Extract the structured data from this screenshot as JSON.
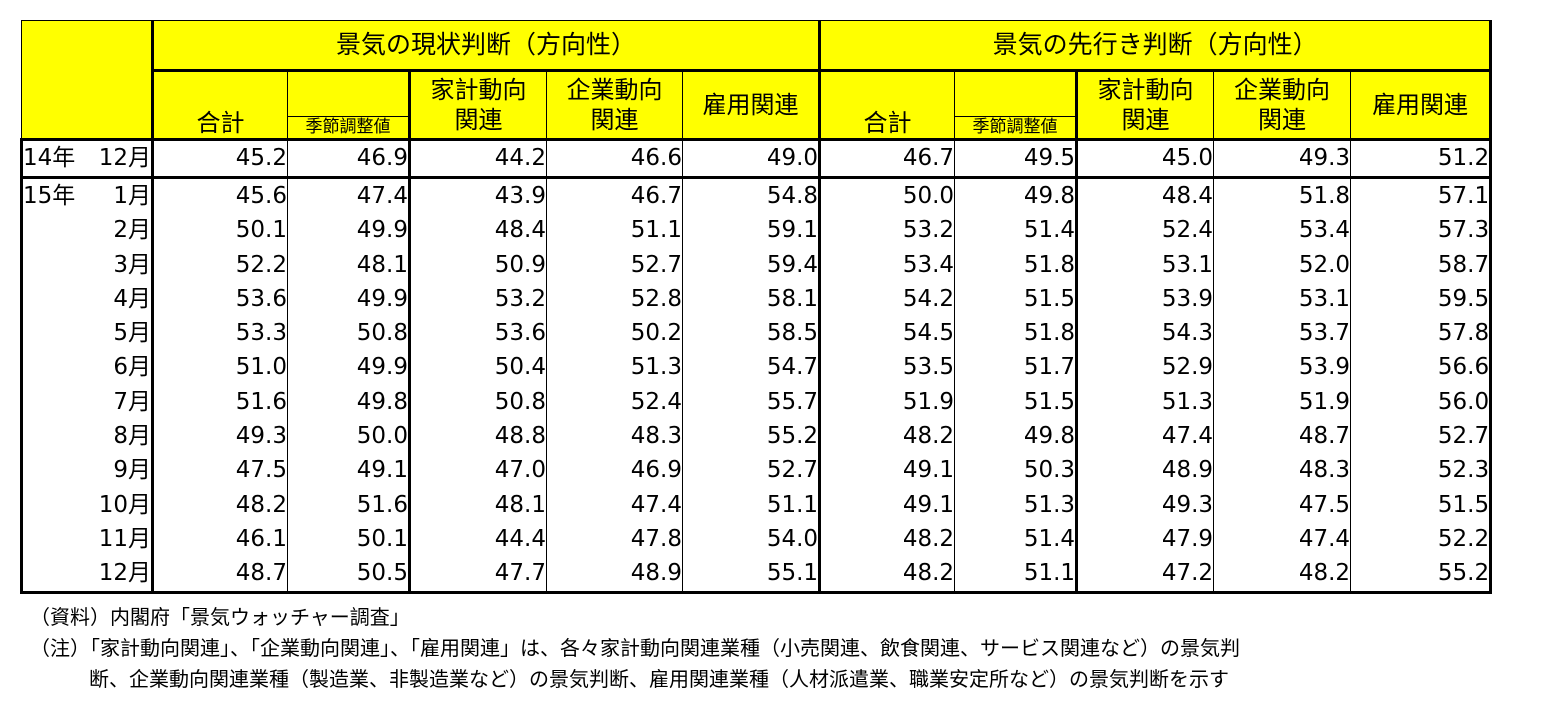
{
  "table": {
    "groups": [
      "景気の現状判断（方向性）",
      "景気の先行き判断（方向性）"
    ],
    "col_labels": {
      "total": "合計",
      "seasonally_adjusted": "季節調整値",
      "household": [
        "家計動向",
        "関連"
      ],
      "corporate": [
        "企業動向",
        "関連"
      ],
      "employment": "雇用関連"
    },
    "first_row": {
      "year": "14年",
      "month": "12月",
      "values": [
        "45.2",
        "46.9",
        "44.2",
        "46.6",
        "49.0",
        "46.7",
        "49.5",
        "45.0",
        "49.3",
        "51.2"
      ]
    },
    "rows": [
      {
        "year": "15年",
        "month": "1月",
        "values": [
          "45.6",
          "47.4",
          "43.9",
          "46.7",
          "54.8",
          "50.0",
          "49.8",
          "48.4",
          "51.8",
          "57.1"
        ]
      },
      {
        "year": "",
        "month": "2月",
        "values": [
          "50.1",
          "49.9",
          "48.4",
          "51.1",
          "59.1",
          "53.2",
          "51.4",
          "52.4",
          "53.4",
          "57.3"
        ]
      },
      {
        "year": "",
        "month": "3月",
        "values": [
          "52.2",
          "48.1",
          "50.9",
          "52.7",
          "59.4",
          "53.4",
          "51.8",
          "53.1",
          "52.0",
          "58.7"
        ]
      },
      {
        "year": "",
        "month": "4月",
        "values": [
          "53.6",
          "49.9",
          "53.2",
          "52.8",
          "58.1",
          "54.2",
          "51.5",
          "53.9",
          "53.1",
          "59.5"
        ]
      },
      {
        "year": "",
        "month": "5月",
        "values": [
          "53.3",
          "50.8",
          "53.6",
          "50.2",
          "58.5",
          "54.5",
          "51.8",
          "54.3",
          "53.7",
          "57.8"
        ]
      },
      {
        "year": "",
        "month": "6月",
        "values": [
          "51.0",
          "49.9",
          "50.4",
          "51.3",
          "54.7",
          "53.5",
          "51.7",
          "52.9",
          "53.9",
          "56.6"
        ]
      },
      {
        "year": "",
        "month": "7月",
        "values": [
          "51.6",
          "49.8",
          "50.8",
          "52.4",
          "55.7",
          "51.9",
          "51.5",
          "51.3",
          "51.9",
          "56.0"
        ]
      },
      {
        "year": "",
        "month": "8月",
        "values": [
          "49.3",
          "50.0",
          "48.8",
          "48.3",
          "55.2",
          "48.2",
          "49.8",
          "47.4",
          "48.7",
          "52.7"
        ]
      },
      {
        "year": "",
        "month": "9月",
        "values": [
          "47.5",
          "49.1",
          "47.0",
          "46.9",
          "52.7",
          "49.1",
          "50.3",
          "48.9",
          "48.3",
          "52.3"
        ]
      },
      {
        "year": "",
        "month": "10月",
        "values": [
          "48.2",
          "51.6",
          "48.1",
          "47.4",
          "51.1",
          "49.1",
          "51.3",
          "49.3",
          "47.5",
          "51.5"
        ]
      },
      {
        "year": "",
        "month": "11月",
        "values": [
          "46.1",
          "50.1",
          "44.4",
          "47.8",
          "54.0",
          "48.2",
          "51.4",
          "47.9",
          "47.4",
          "52.2"
        ]
      },
      {
        "year": "",
        "month": "12月",
        "values": [
          "48.7",
          "50.5",
          "47.7",
          "48.9",
          "55.1",
          "48.2",
          "51.1",
          "47.2",
          "48.2",
          "55.2"
        ]
      }
    ]
  },
  "notes": {
    "source": "（資料）内閣府「景気ウォッチャー調査」",
    "note_line1": "（注）「家計動向関連」、「企業動向関連」、「雇用関連」は、各々家計動向関連業種（小売関連、飲食関連、サービス関連など）の景気判",
    "note_line2": "断、企業動向関連業種（製造業、非製造業など）の景気判断、雇用関連業種（人材派遣業、職業安定所など）の景気判断を示す"
  },
  "colors": {
    "header_bg": "#ffff00",
    "border": "#000000"
  }
}
